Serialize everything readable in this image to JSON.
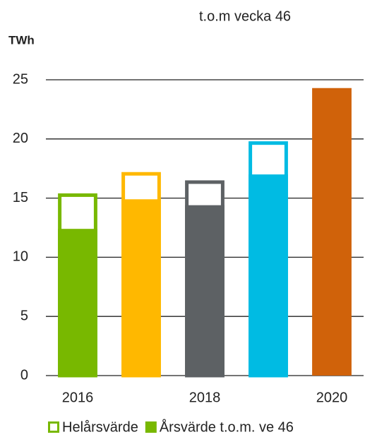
{
  "chart_data": {
    "type": "bar",
    "ylabel": "TWh",
    "annotation": "t.o.m vecka 46",
    "categories": [
      "2016",
      null,
      "2018",
      null,
      "2020"
    ],
    "bar_colors": [
      "#78b800",
      "#ffb800",
      "#5d6164",
      "#00bbe3",
      "#d0620a"
    ],
    "series": [
      {
        "name": "Helårsvärde",
        "color": "#78b800",
        "style": "outline",
        "values": [
          15.4,
          17.2,
          16.5,
          19.8,
          null
        ]
      },
      {
        "name": "Årsvärde t.o.m. ve 46",
        "color": "#78b800",
        "style": "filled",
        "values": [
          12.4,
          14.9,
          14.4,
          17.0,
          24.3
        ]
      }
    ],
    "ylim": [
      0,
      25
    ],
    "yticks": [
      0,
      5,
      10,
      15,
      20,
      25
    ],
    "grid": true,
    "legend": "bottom"
  }
}
